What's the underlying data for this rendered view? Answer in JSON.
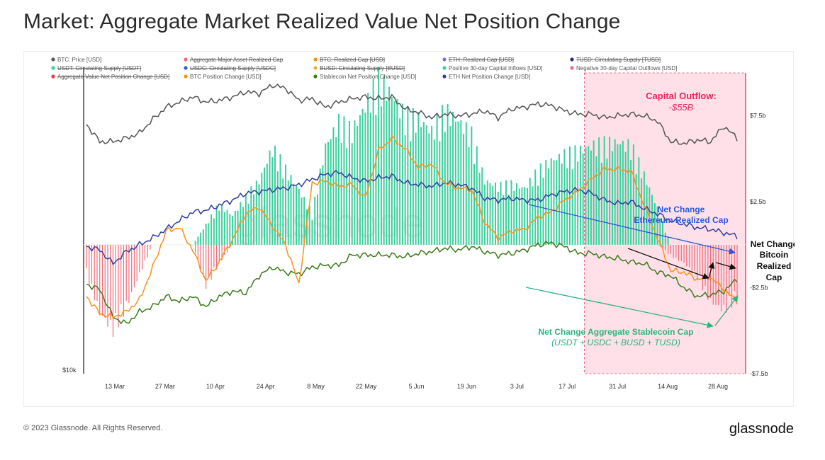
{
  "title": "Market: Aggregate Market Realized Value Net Position Change",
  "footer": {
    "copyright": "© 2023 Glassnode. All Rights Reserved.",
    "brand": "glassnode"
  },
  "watermark": "glassnode",
  "colors": {
    "btc_price": "#555555",
    "btc_position": "#f7931a",
    "eth_position": "#2f3f9e",
    "stablecoin_position": "#3d7a1a",
    "positive_inflow": "#3ccf9e",
    "negative_outflow": "#ef6a78",
    "outflow_shade": "#ffd6e2",
    "outflow_border": "#f0406e",
    "ann_red": "#e8265e",
    "ann_blue": "#2a59d9",
    "ann_green": "#2bb37e"
  },
  "annotations": {
    "outflow_title": "Capital Outflow:",
    "outflow_value": "-$55B",
    "eth_line1": "Net Change",
    "eth_line2": "Ethereum Realized Cap",
    "btc_line1": "Net Change",
    "btc_line2": "Bitcoin",
    "btc_line3": "Realized",
    "btc_line4": "Cap",
    "stable_line1": "Net Change Aggregate Stablecoin Cap",
    "stable_line2": "(USDT + USDC + BUSD + TUSD)"
  },
  "chart_data": {
    "type": "line",
    "legend": [
      {
        "name": "BTC: Price [USD]",
        "color": "#555555",
        "active": true
      },
      {
        "name": "Aggregate Major Asset Realized Cap",
        "color": "#ef6a78",
        "active": false
      },
      {
        "name": "BTC: Realized Cap [USD]",
        "color": "#f7931a",
        "active": false
      },
      {
        "name": "ETH: Realized Cap [USD]",
        "color": "#7b6fd6",
        "active": false
      },
      {
        "name": "TUSD: Circulating Supply [TUSD]",
        "color": "#2a2a7a",
        "active": false
      },
      {
        "name": "USDT: Circulating Supply [USDT]",
        "color": "#3ccf9e",
        "active": false
      },
      {
        "name": "USDC: Circulating Supply [USDC]",
        "color": "#2f5fbf",
        "active": false
      },
      {
        "name": "BUSD: Circulating Supply [BUSD]",
        "color": "#e0b43a",
        "active": false
      },
      {
        "name": "Positive 30-day Capital Inflows [USD]",
        "color": "#3ccf9e",
        "active": true
      },
      {
        "name": "Negative 30-day Capital Outflows [USD]",
        "color": "#ef6a78",
        "active": true
      },
      {
        "name": "Aggregate Value Net Position Change [USD]",
        "color": "#e53946",
        "active": false
      },
      {
        "name": "BTC Position Change [USD]",
        "color": "#f7931a",
        "active": true
      },
      {
        "name": "Stablecoin Net Position Change [USD]",
        "color": "#3d7a1a",
        "active": true
      },
      {
        "name": "ETH Net Position Change [USD]",
        "color": "#2f3f9e",
        "active": true
      }
    ],
    "x_ticks": [
      "13 Mar",
      "27 Mar",
      "10 Apr",
      "24 Apr",
      "8 May",
      "22 May",
      "5 Jun",
      "19 Jun",
      "3 Jul",
      "17 Jul",
      "31 Jul",
      "14 Aug",
      "28 Aug"
    ],
    "left_axis": {
      "ticks": [
        "$10k"
      ]
    },
    "right_axis": {
      "ticks": [
        "$7.5b",
        "$2.5b",
        "-$2.5b",
        "-$7.5b"
      ],
      "range": [
        -7.5,
        10
      ]
    },
    "series": [
      {
        "name": "BTC: Price [USD]",
        "values": [
          7.0,
          6.0,
          6.0,
          6.2,
          6.5,
          7.3,
          8.0,
          8.3,
          8.6,
          8.3,
          8.4,
          8.6,
          8.9,
          8.8,
          9.3,
          9.1,
          8.4,
          8.5,
          8.0,
          8.3,
          8.5,
          8.6,
          8.5,
          8.6,
          7.9,
          7.7,
          7.4,
          7.6,
          7.5,
          7.6,
          7.8,
          7.4,
          7.9,
          8.0,
          8.2,
          8.1,
          7.8,
          7.6,
          7.6,
          7.4,
          7.5,
          7.6,
          7.5,
          7.2,
          6.0,
          5.9,
          6.1,
          6.0,
          6.9,
          6.2
        ]
      },
      {
        "name": "BTC Position Change [USD]",
        "values": [
          -3.0,
          -4.0,
          -4.2,
          -3.9,
          -3.2,
          -1.3,
          0.8,
          1.0,
          -0.3,
          -2.1,
          -1.0,
          0.3,
          1.8,
          2.2,
          1.1,
          0.0,
          -2.3,
          3.6,
          3.7,
          3.4,
          3.5,
          2.7,
          5.5,
          6.2,
          5.6,
          4.5,
          4.7,
          3.6,
          3.3,
          3.2,
          1.3,
          0.4,
          0.8,
          0.9,
          1.6,
          1.9,
          2.6,
          3.1,
          3.8,
          4.4,
          4.4,
          4.3,
          2.3,
          0.4,
          -1.5,
          -1.6,
          -2.0,
          -1.9,
          -2.6,
          -3.3
        ]
      },
      {
        "name": "ETH Net Position Change [USD]",
        "values": [
          -0.1,
          -0.3,
          -1.1,
          -0.4,
          0.0,
          0.4,
          0.9,
          1.4,
          1.9,
          2.0,
          2.3,
          2.6,
          3.0,
          3.1,
          3.2,
          3.3,
          3.5,
          3.8,
          4.1,
          4.2,
          3.9,
          3.7,
          3.9,
          4.0,
          3.6,
          3.5,
          3.4,
          3.6,
          3.5,
          3.3,
          2.7,
          2.6,
          2.7,
          2.6,
          2.6,
          2.9,
          3.1,
          3.2,
          3.0,
          2.6,
          2.4,
          2.5,
          2.1,
          1.8,
          1.4,
          1.2,
          1.0,
          0.9,
          0.7,
          0.5
        ]
      },
      {
        "name": "Stablecoin Net Position Change [USD]",
        "values": [
          -2.3,
          -2.6,
          -4.2,
          -4.6,
          -3.9,
          -3.6,
          -3.0,
          -3.3,
          -3.0,
          -3.6,
          -3.0,
          -2.7,
          -2.8,
          -1.8,
          -1.3,
          -1.6,
          -1.7,
          -1.3,
          -1.2,
          -1.2,
          -0.6,
          -0.6,
          -0.6,
          -0.6,
          -0.7,
          -0.5,
          -0.4,
          -0.2,
          -0.3,
          -0.1,
          -0.4,
          -0.6,
          -0.5,
          -0.3,
          0.0,
          0.1,
          -0.1,
          -0.5,
          -0.5,
          -0.7,
          -0.8,
          -1.0,
          -1.1,
          -1.6,
          -1.8,
          -2.5,
          -3.0,
          -2.9,
          -2.7,
          -2.0
        ]
      },
      {
        "name": "Positive 30-day Capital Inflows [USD]",
        "values": [
          0,
          0,
          0,
          0,
          0,
          0,
          0,
          0,
          0,
          1.1,
          2.2,
          1.6,
          2.6,
          3.5,
          5.3,
          4.1,
          3.0,
          1.7,
          5.4,
          6.7,
          6.2,
          7.6,
          9.0,
          8.2,
          7.0,
          6.9,
          6.2,
          7.3,
          6.8,
          6.0,
          3.5,
          3.2,
          3.3,
          3.1,
          4.0,
          4.6,
          4.9,
          5.1,
          5.4,
          5.5,
          5.6,
          5.4,
          3.8,
          2.0,
          0,
          0,
          0,
          0,
          0,
          0
        ]
      },
      {
        "name": "Negative 30-day Capital Outflows [USD]",
        "values": [
          -1.6,
          -3.7,
          -4.7,
          -3.4,
          -1.6,
          0,
          0,
          0,
          0,
          -2.3,
          -1.0,
          0,
          0,
          0,
          0,
          0,
          0,
          0,
          0,
          0,
          0,
          0,
          0,
          0,
          0,
          0,
          0,
          0,
          0,
          0,
          0,
          0,
          0,
          0,
          0,
          0,
          0,
          0,
          0,
          0,
          0,
          0,
          0,
          0,
          -0.6,
          -1.0,
          -1.8,
          -3.1,
          -3.6,
          -2.9
        ]
      }
    ]
  }
}
